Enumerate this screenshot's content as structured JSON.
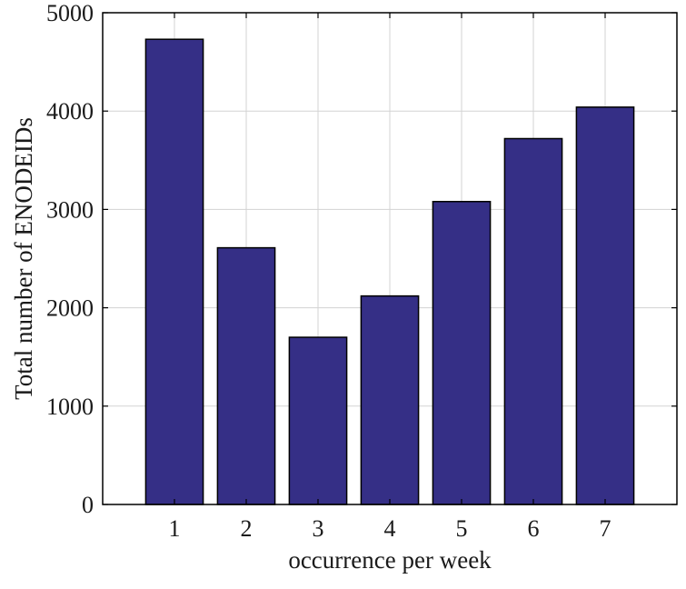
{
  "chart_data": {
    "type": "bar",
    "categories": [
      "1",
      "2",
      "3",
      "4",
      "5",
      "6",
      "7"
    ],
    "values": [
      4730,
      2610,
      1700,
      2120,
      3080,
      3720,
      4040
    ],
    "title": "",
    "xlabel": "occurrence per week",
    "ylabel": "Total number of ENODEIDs",
    "ylim": [
      0,
      5000
    ],
    "yticks": [
      "0",
      "1000",
      "2000",
      "3000",
      "4000",
      "5000"
    ],
    "xlim": [
      0,
      8
    ],
    "grid": true,
    "legend": "none",
    "colors": {
      "bar_fill": "#352f86",
      "bar_edge": "#000000",
      "grid": "#d3d3d3",
      "axes": "#000000"
    }
  }
}
